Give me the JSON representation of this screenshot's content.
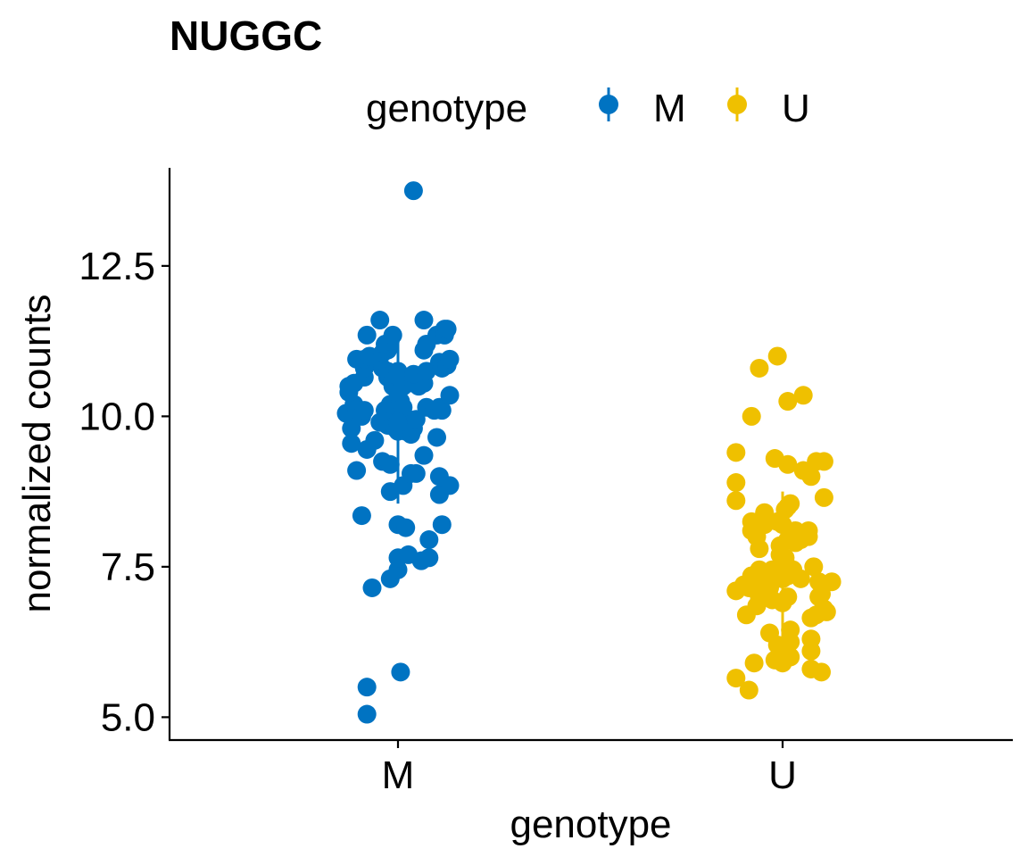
{
  "chart_data": {
    "type": "scatter",
    "title": "NUGGC",
    "xlabel": "genotype",
    "ylabel": "normalized counts",
    "categories": [
      "M",
      "U"
    ],
    "ylim": [
      4.62,
      14.13
    ],
    "yticks": [
      5.0,
      7.5,
      10.0,
      12.5
    ],
    "ytick_labels": [
      "5.0",
      "7.5",
      "10.0",
      "12.5"
    ],
    "grid": false,
    "legend": {
      "title": "genotype",
      "position": "top",
      "entries": [
        {
          "label": "M",
          "color": "#0073C2"
        },
        {
          "label": "U",
          "color": "#EFC000"
        }
      ]
    },
    "series": [
      {
        "name": "M",
        "color": "#0073C2",
        "summary": {
          "mean": 9.9,
          "sd_low": 8.55,
          "sd_high": 11.35
        },
        "points": [
          {
            "x": -0.12,
            "y": 5.05
          },
          {
            "x": -0.12,
            "y": 5.5
          },
          {
            "x": 0.01,
            "y": 5.75
          },
          {
            "x": -0.1,
            "y": 7.15
          },
          {
            "x": -0.03,
            "y": 7.3
          },
          {
            "x": 0.0,
            "y": 7.45
          },
          {
            "x": 0.0,
            "y": 7.65
          },
          {
            "x": 0.04,
            "y": 7.7
          },
          {
            "x": 0.09,
            "y": 7.6
          },
          {
            "x": 0.12,
            "y": 7.65
          },
          {
            "x": 0.12,
            "y": 7.95
          },
          {
            "x": 0.0,
            "y": 8.2
          },
          {
            "x": 0.03,
            "y": 8.15
          },
          {
            "x": 0.17,
            "y": 8.2
          },
          {
            "x": -0.14,
            "y": 8.35
          },
          {
            "x": -0.03,
            "y": 8.75
          },
          {
            "x": 0.02,
            "y": 8.85
          },
          {
            "x": 0.16,
            "y": 8.7
          },
          {
            "x": 0.2,
            "y": 8.85
          },
          {
            "x": 0.16,
            "y": 9.0
          },
          {
            "x": -0.16,
            "y": 9.1
          },
          {
            "x": -0.06,
            "y": 9.25
          },
          {
            "x": -0.03,
            "y": 9.2
          },
          {
            "x": 0.05,
            "y": 9.05
          },
          {
            "x": 0.07,
            "y": 9.05
          },
          {
            "x": 0.1,
            "y": 9.35
          },
          {
            "x": -0.12,
            "y": 9.45
          },
          {
            "x": -0.18,
            "y": 9.55
          },
          {
            "x": -0.09,
            "y": 9.6
          },
          {
            "x": 0.15,
            "y": 9.65
          },
          {
            "x": -0.07,
            "y": 9.9
          },
          {
            "x": -0.05,
            "y": 9.95
          },
          {
            "x": -0.04,
            "y": 9.85
          },
          {
            "x": -0.02,
            "y": 10.0
          },
          {
            "x": -0.01,
            "y": 9.8
          },
          {
            "x": 0.0,
            "y": 9.75
          },
          {
            "x": 0.01,
            "y": 9.9
          },
          {
            "x": 0.02,
            "y": 9.8
          },
          {
            "x": 0.03,
            "y": 9.75
          },
          {
            "x": 0.04,
            "y": 9.95
          },
          {
            "x": 0.05,
            "y": 9.7
          },
          {
            "x": 0.06,
            "y": 9.8
          },
          {
            "x": 0.07,
            "y": 9.95
          },
          {
            "x": -0.18,
            "y": 9.8
          },
          {
            "x": -0.2,
            "y": 10.05
          },
          {
            "x": -0.17,
            "y": 10.2
          },
          {
            "x": -0.19,
            "y": 10.4
          },
          {
            "x": -0.16,
            "y": 10.1
          },
          {
            "x": -0.14,
            "y": 10.0
          },
          {
            "x": -0.13,
            "y": 10.1
          },
          {
            "x": -0.05,
            "y": 10.1
          },
          {
            "x": -0.03,
            "y": 10.2
          },
          {
            "x": 0.01,
            "y": 10.25
          },
          {
            "x": 0.02,
            "y": 10.15
          },
          {
            "x": 0.11,
            "y": 10.15
          },
          {
            "x": 0.14,
            "y": 10.1
          },
          {
            "x": 0.16,
            "y": 10.15
          },
          {
            "x": 0.17,
            "y": 10.1
          },
          {
            "x": 0.2,
            "y": 10.35
          },
          {
            "x": -0.19,
            "y": 10.5
          },
          {
            "x": -0.17,
            "y": 10.55
          },
          {
            "x": -0.13,
            "y": 10.65
          },
          {
            "x": -0.04,
            "y": 10.65
          },
          {
            "x": -0.02,
            "y": 10.5
          },
          {
            "x": 0.0,
            "y": 10.4
          },
          {
            "x": 0.02,
            "y": 10.5
          },
          {
            "x": 0.06,
            "y": 10.55
          },
          {
            "x": 0.08,
            "y": 10.5
          },
          {
            "x": 0.1,
            "y": 10.55
          },
          {
            "x": -0.13,
            "y": 10.8
          },
          {
            "x": -0.16,
            "y": 10.95
          },
          {
            "x": -0.13,
            "y": 10.95
          },
          {
            "x": -0.08,
            "y": 10.95
          },
          {
            "x": -0.06,
            "y": 10.8
          },
          {
            "x": -0.04,
            "y": 10.75
          },
          {
            "x": -0.02,
            "y": 10.7
          },
          {
            "x": 0.0,
            "y": 10.75
          },
          {
            "x": 0.06,
            "y": 10.7
          },
          {
            "x": 0.11,
            "y": 10.75
          },
          {
            "x": 0.16,
            "y": 10.9
          },
          {
            "x": 0.17,
            "y": 10.8
          },
          {
            "x": 0.19,
            "y": 10.85
          },
          {
            "x": 0.2,
            "y": 10.95
          },
          {
            "x": -0.11,
            "y": 11.0
          },
          {
            "x": -0.06,
            "y": 11.05
          },
          {
            "x": -0.04,
            "y": 11.1
          },
          {
            "x": -0.05,
            "y": 11.2
          },
          {
            "x": -0.03,
            "y": 11.25
          },
          {
            "x": -0.02,
            "y": 11.35
          },
          {
            "x": 0.1,
            "y": 11.1
          },
          {
            "x": 0.11,
            "y": 11.2
          },
          {
            "x": 0.15,
            "y": 11.35
          },
          {
            "x": 0.18,
            "y": 11.35
          },
          {
            "x": 0.18,
            "y": 11.45
          },
          {
            "x": 0.19,
            "y": 11.45
          },
          {
            "x": -0.12,
            "y": 11.35
          },
          {
            "x": -0.07,
            "y": 11.6
          },
          {
            "x": 0.1,
            "y": 11.6
          },
          {
            "x": 0.06,
            "y": 13.75
          }
        ]
      },
      {
        "name": "U",
        "color": "#EFC000",
        "summary": {
          "mean": 7.3,
          "sd_low": 6.1,
          "sd_high": 8.75
        },
        "points": [
          {
            "x": -0.13,
            "y": 5.45
          },
          {
            "x": -0.18,
            "y": 5.65
          },
          {
            "x": 0.15,
            "y": 5.75
          },
          {
            "x": 0.11,
            "y": 5.8
          },
          {
            "x": -0.11,
            "y": 5.9
          },
          {
            "x": -0.03,
            "y": 5.95
          },
          {
            "x": 0.0,
            "y": 5.9
          },
          {
            "x": 0.03,
            "y": 6.0
          },
          {
            "x": 0.0,
            "y": 6.05
          },
          {
            "x": -0.02,
            "y": 6.2
          },
          {
            "x": 0.01,
            "y": 6.2
          },
          {
            "x": 0.03,
            "y": 6.25
          },
          {
            "x": 0.11,
            "y": 6.1
          },
          {
            "x": 0.11,
            "y": 6.3
          },
          {
            "x": 0.03,
            "y": 6.45
          },
          {
            "x": -0.05,
            "y": 6.4
          },
          {
            "x": -0.14,
            "y": 6.7
          },
          {
            "x": -0.1,
            "y": 6.85
          },
          {
            "x": 0.11,
            "y": 6.65
          },
          {
            "x": 0.13,
            "y": 6.7
          },
          {
            "x": 0.15,
            "y": 6.75
          },
          {
            "x": 0.16,
            "y": 6.8
          },
          {
            "x": 0.17,
            "y": 6.75
          },
          {
            "x": -0.04,
            "y": 6.95
          },
          {
            "x": 0.0,
            "y": 6.9
          },
          {
            "x": 0.02,
            "y": 7.0
          },
          {
            "x": -0.09,
            "y": 7.0
          },
          {
            "x": 0.14,
            "y": 7.0
          },
          {
            "x": 0.15,
            "y": 7.05
          },
          {
            "x": -0.18,
            "y": 7.1
          },
          {
            "x": -0.15,
            "y": 7.2
          },
          {
            "x": -0.13,
            "y": 7.15
          },
          {
            "x": -0.12,
            "y": 7.25
          },
          {
            "x": -0.1,
            "y": 7.3
          },
          {
            "x": -0.08,
            "y": 7.2
          },
          {
            "x": -0.06,
            "y": 7.25
          },
          {
            "x": -0.05,
            "y": 7.15
          },
          {
            "x": -0.03,
            "y": 7.3
          },
          {
            "x": 0.0,
            "y": 7.3
          },
          {
            "x": 0.02,
            "y": 7.35
          },
          {
            "x": 0.07,
            "y": 7.3
          },
          {
            "x": 0.14,
            "y": 7.25
          },
          {
            "x": 0.19,
            "y": 7.25
          },
          {
            "x": -0.12,
            "y": 7.35
          },
          {
            "x": -0.09,
            "y": 7.45
          },
          {
            "x": -0.04,
            "y": 7.45
          },
          {
            "x": -0.02,
            "y": 7.4
          },
          {
            "x": 0.0,
            "y": 7.55
          },
          {
            "x": 0.02,
            "y": 7.5
          },
          {
            "x": 0.04,
            "y": 7.45
          },
          {
            "x": 0.12,
            "y": 7.5
          },
          {
            "x": -0.01,
            "y": 7.7
          },
          {
            "x": 0.01,
            "y": 7.65
          },
          {
            "x": -0.09,
            "y": 7.8
          },
          {
            "x": -0.01,
            "y": 7.85
          },
          {
            "x": 0.05,
            "y": 7.9
          },
          {
            "x": 0.02,
            "y": 7.95
          },
          {
            "x": 0.07,
            "y": 7.95
          },
          {
            "x": 0.1,
            "y": 8.0
          },
          {
            "x": -0.12,
            "y": 8.1
          },
          {
            "x": -0.1,
            "y": 8.0
          },
          {
            "x": -0.07,
            "y": 8.2
          },
          {
            "x": 0.05,
            "y": 8.1
          },
          {
            "x": 0.08,
            "y": 8.05
          },
          {
            "x": 0.1,
            "y": 8.1
          },
          {
            "x": -0.12,
            "y": 8.25
          },
          {
            "x": -0.07,
            "y": 8.4
          },
          {
            "x": -0.02,
            "y": 8.25
          },
          {
            "x": 0.0,
            "y": 8.2
          },
          {
            "x": 0.01,
            "y": 8.45
          },
          {
            "x": 0.02,
            "y": 8.5
          },
          {
            "x": 0.03,
            "y": 8.55
          },
          {
            "x": -0.18,
            "y": 8.6
          },
          {
            "x": -0.18,
            "y": 8.9
          },
          {
            "x": 0.16,
            "y": 8.65
          },
          {
            "x": 0.11,
            "y": 9.0
          },
          {
            "x": 0.08,
            "y": 9.1
          },
          {
            "x": 0.13,
            "y": 9.25
          },
          {
            "x": 0.16,
            "y": 9.25
          },
          {
            "x": 0.02,
            "y": 9.2
          },
          {
            "x": -0.03,
            "y": 9.3
          },
          {
            "x": -0.18,
            "y": 9.4
          },
          {
            "x": -0.12,
            "y": 10.0
          },
          {
            "x": 0.02,
            "y": 10.25
          },
          {
            "x": 0.08,
            "y": 10.35
          },
          {
            "x": -0.09,
            "y": 10.8
          },
          {
            "x": -0.02,
            "y": 11.0
          }
        ]
      }
    ]
  }
}
